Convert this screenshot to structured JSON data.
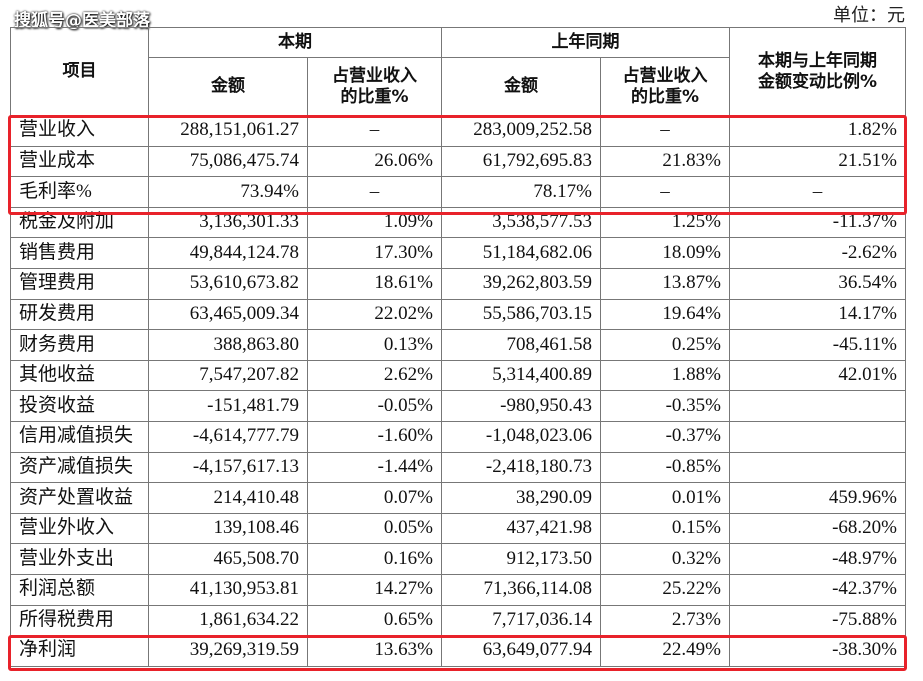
{
  "watermark": "搜狐号@医美部落",
  "unit": "单位：元",
  "table": {
    "header": {
      "top": [
        "项目",
        "本期",
        "上年同期",
        "本期与上年同期\n金额变动比例%"
      ],
      "sub": [
        "金额",
        "占营业收入\n的比重%",
        "金额",
        "占营业收入\n的比重%"
      ]
    },
    "rows": [
      [
        "营业收入",
        "288,151,061.27",
        "–",
        "283,009,252.58",
        "–",
        "1.82%"
      ],
      [
        "营业成本",
        "75,086,475.74",
        "26.06%",
        "61,792,695.83",
        "21.83%",
        "21.51%"
      ],
      [
        "毛利率%",
        "73.94%",
        "–",
        "78.17%",
        "–",
        "–"
      ],
      [
        "税金及附加",
        "3,136,301.33",
        "1.09%",
        "3,538,577.53",
        "1.25%",
        "-11.37%"
      ],
      [
        "销售费用",
        "49,844,124.78",
        "17.30%",
        "51,184,682.06",
        "18.09%",
        "-2.62%"
      ],
      [
        "管理费用",
        "53,610,673.82",
        "18.61%",
        "39,262,803.59",
        "13.87%",
        "36.54%"
      ],
      [
        "研发费用",
        "63,465,009.34",
        "22.02%",
        "55,586,703.15",
        "19.64%",
        "14.17%"
      ],
      [
        "财务费用",
        "388,863.80",
        "0.13%",
        "708,461.58",
        "0.25%",
        "-45.11%"
      ],
      [
        "其他收益",
        "7,547,207.82",
        "2.62%",
        "5,314,400.89",
        "1.88%",
        "42.01%"
      ],
      [
        "投资收益",
        "-151,481.79",
        "-0.05%",
        "-980,950.43",
        "-0.35%",
        null
      ],
      [
        "信用减值损失",
        "-4,614,777.79",
        "-1.60%",
        "-1,048,023.06",
        "-0.37%",
        null
      ],
      [
        "资产减值损失",
        "-4,157,617.13",
        "-1.44%",
        "-2,418,180.73",
        "-0.85%",
        null
      ],
      [
        "资产处置收益",
        "214,410.48",
        "0.07%",
        "38,290.09",
        "0.01%",
        "459.96%"
      ],
      [
        "营业外收入",
        "139,108.46",
        "0.05%",
        "437,421.98",
        "0.15%",
        "-68.20%"
      ],
      [
        "营业外支出",
        "465,508.70",
        "0.16%",
        "912,173.50",
        "0.32%",
        "-48.97%"
      ],
      [
        "利润总额",
        "41,130,953.81",
        "14.27%",
        "71,366,114.08",
        "25.22%",
        "-42.37%"
      ],
      [
        "所得税费用",
        "1,861,634.22",
        "0.65%",
        "7,717,036.14",
        "2.73%",
        "-75.88%"
      ],
      [
        "净利润",
        "39,269,319.59",
        "13.63%",
        "63,649,077.94",
        "22.49%",
        "-38.30%"
      ]
    ]
  }
}
